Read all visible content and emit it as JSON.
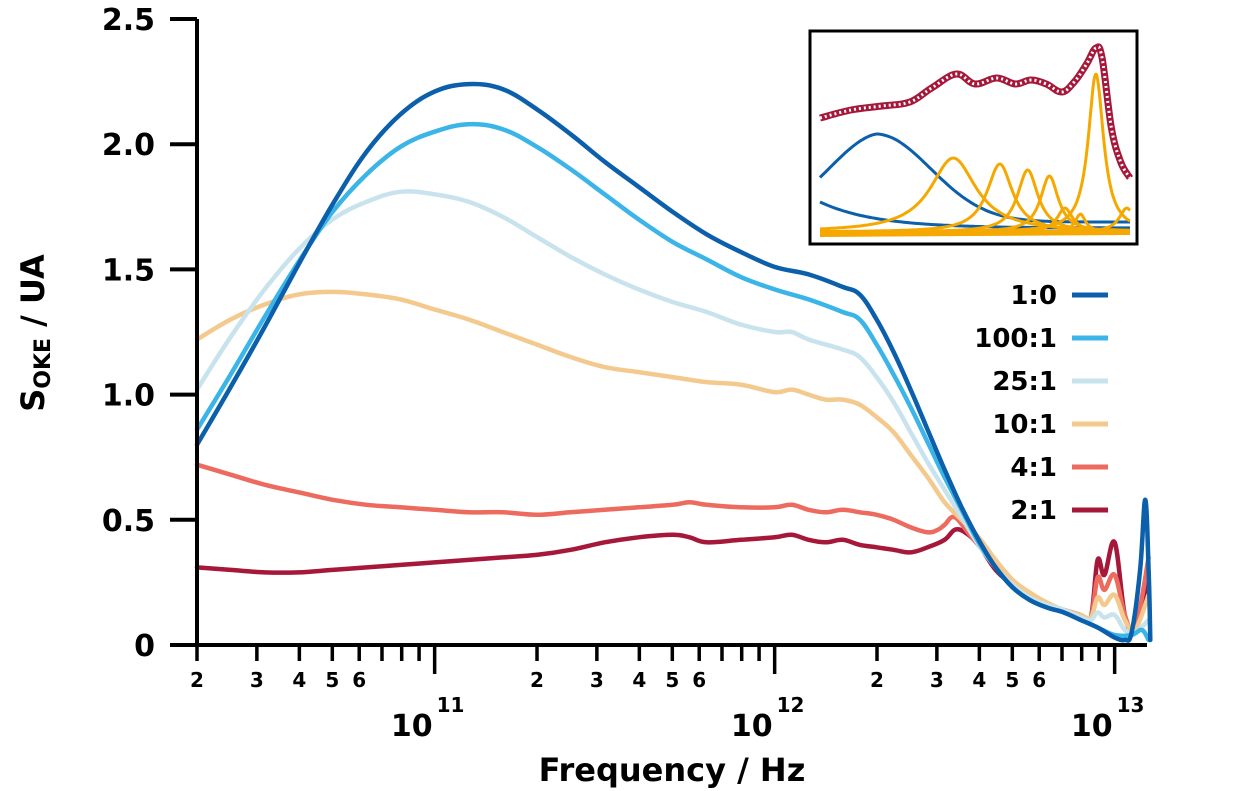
{
  "chart_data": {
    "type": "line",
    "title": "",
    "xlabel": "Frequency / Hz",
    "ylabel_main": "S",
    "ylabel_sub": "OKE",
    "ylabel_rest": " / UA",
    "xscale": "log",
    "xlim": [
      20000000000.0,
      12700000000000.0
    ],
    "ylim": [
      0,
      2.5
    ],
    "grid": false,
    "legend_position": "right-middle",
    "y_ticks": [
      {
        "value": 0,
        "label": "0"
      },
      {
        "value": 0.5,
        "label": "0.5"
      },
      {
        "value": 1.0,
        "label": "1.0"
      },
      {
        "value": 1.5,
        "label": "1.5"
      },
      {
        "value": 2.0,
        "label": "2.0"
      },
      {
        "value": 2.5,
        "label": "2.5"
      }
    ],
    "x_major_ticks": [
      {
        "value": 100000000000.0,
        "base": "10",
        "exp": "11"
      },
      {
        "value": 1000000000000.0,
        "base": "10",
        "exp": "12"
      },
      {
        "value": 10000000000000.0,
        "base": "10",
        "exp": "13"
      }
    ],
    "x_minor_labels": [
      "2",
      "3",
      "4",
      "5",
      "6"
    ],
    "series": [
      {
        "name": "1:0",
        "color": "#0b5fab",
        "points": [
          [
            10.301,
            0.8
          ],
          [
            10.4,
            1.03
          ],
          [
            10.5,
            1.27
          ],
          [
            10.6,
            1.52
          ],
          [
            10.7,
            1.76
          ],
          [
            10.8,
            1.97
          ],
          [
            10.9,
            2.12
          ],
          [
            11.0,
            2.21
          ],
          [
            11.1,
            2.24
          ],
          [
            11.2,
            2.22
          ],
          [
            11.3,
            2.14
          ],
          [
            11.4,
            2.04
          ],
          [
            11.5,
            1.93
          ],
          [
            11.6,
            1.83
          ],
          [
            11.7,
            1.73
          ],
          [
            11.8,
            1.64
          ],
          [
            11.9,
            1.57
          ],
          [
            12.0,
            1.51
          ],
          [
            12.1,
            1.48
          ],
          [
            12.2,
            1.43
          ],
          [
            12.25,
            1.4
          ],
          [
            12.3,
            1.3
          ],
          [
            12.35,
            1.17
          ],
          [
            12.4,
            1.02
          ],
          [
            12.45,
            0.86
          ],
          [
            12.5,
            0.7
          ],
          [
            12.55,
            0.55
          ],
          [
            12.6,
            0.42
          ],
          [
            12.65,
            0.31
          ],
          [
            12.7,
            0.23
          ],
          [
            12.75,
            0.18
          ],
          [
            12.8,
            0.15
          ],
          [
            12.85,
            0.13
          ],
          [
            12.9,
            0.1
          ],
          [
            12.95,
            0.07
          ],
          [
            13.0,
            0.03
          ],
          [
            13.03,
            0.02
          ],
          [
            13.05,
            0.05
          ],
          [
            13.075,
            0.3
          ],
          [
            13.09,
            0.58
          ],
          [
            13.1,
            0.3
          ],
          [
            13.105,
            0.02
          ]
        ]
      },
      {
        "name": "100:1",
        "color": "#3bb5e8",
        "points": [
          [
            10.301,
            0.86
          ],
          [
            10.4,
            1.08
          ],
          [
            10.5,
            1.31
          ],
          [
            10.6,
            1.53
          ],
          [
            10.7,
            1.73
          ],
          [
            10.8,
            1.88
          ],
          [
            10.9,
            1.99
          ],
          [
            11.0,
            2.05
          ],
          [
            11.1,
            2.08
          ],
          [
            11.2,
            2.06
          ],
          [
            11.3,
            1.99
          ],
          [
            11.4,
            1.9
          ],
          [
            11.5,
            1.8
          ],
          [
            11.6,
            1.7
          ],
          [
            11.7,
            1.61
          ],
          [
            11.8,
            1.54
          ],
          [
            11.9,
            1.47
          ],
          [
            12.0,
            1.42
          ],
          [
            12.1,
            1.38
          ],
          [
            12.2,
            1.33
          ],
          [
            12.25,
            1.3
          ],
          [
            12.3,
            1.2
          ],
          [
            12.35,
            1.08
          ],
          [
            12.4,
            0.95
          ],
          [
            12.45,
            0.81
          ],
          [
            12.5,
            0.67
          ],
          [
            12.55,
            0.54
          ],
          [
            12.6,
            0.41
          ],
          [
            12.65,
            0.31
          ],
          [
            12.7,
            0.23
          ],
          [
            12.75,
            0.18
          ],
          [
            12.8,
            0.15
          ],
          [
            12.85,
            0.13
          ],
          [
            12.9,
            0.1
          ],
          [
            12.95,
            0.07
          ],
          [
            13.0,
            0.04
          ],
          [
            13.05,
            0.04
          ],
          [
            13.08,
            0.06
          ],
          [
            13.1,
            0.02
          ]
        ]
      },
      {
        "name": "25:1",
        "color": "#c8e3ee",
        "points": [
          [
            10.301,
            1.02
          ],
          [
            10.4,
            1.23
          ],
          [
            10.5,
            1.42
          ],
          [
            10.6,
            1.58
          ],
          [
            10.7,
            1.7
          ],
          [
            10.8,
            1.77
          ],
          [
            10.9,
            1.81
          ],
          [
            11.0,
            1.8
          ],
          [
            11.1,
            1.77
          ],
          [
            11.2,
            1.71
          ],
          [
            11.3,
            1.63
          ],
          [
            11.4,
            1.55
          ],
          [
            11.5,
            1.48
          ],
          [
            11.6,
            1.42
          ],
          [
            11.7,
            1.37
          ],
          [
            11.8,
            1.33
          ],
          [
            11.9,
            1.28
          ],
          [
            12.0,
            1.25
          ],
          [
            12.05,
            1.25
          ],
          [
            12.1,
            1.22
          ],
          [
            12.2,
            1.18
          ],
          [
            12.25,
            1.15
          ],
          [
            12.3,
            1.07
          ],
          [
            12.35,
            0.97
          ],
          [
            12.4,
            0.85
          ],
          [
            12.45,
            0.73
          ],
          [
            12.5,
            0.62
          ],
          [
            12.55,
            0.51
          ],
          [
            12.6,
            0.4
          ],
          [
            12.65,
            0.31
          ],
          [
            12.7,
            0.24
          ],
          [
            12.75,
            0.19
          ],
          [
            12.8,
            0.16
          ],
          [
            12.85,
            0.14
          ],
          [
            12.9,
            0.11
          ],
          [
            12.93,
            0.1
          ],
          [
            12.95,
            0.13
          ],
          [
            12.97,
            0.11
          ],
          [
            13.0,
            0.12
          ],
          [
            13.03,
            0.06
          ],
          [
            13.06,
            0.05
          ],
          [
            13.1,
            0.1
          ]
        ]
      },
      {
        "name": "10:1",
        "color": "#f4c98e",
        "points": [
          [
            10.301,
            1.22
          ],
          [
            10.4,
            1.3
          ],
          [
            10.5,
            1.36
          ],
          [
            10.6,
            1.4
          ],
          [
            10.7,
            1.41
          ],
          [
            10.8,
            1.4
          ],
          [
            10.9,
            1.38
          ],
          [
            11.0,
            1.34
          ],
          [
            11.1,
            1.3
          ],
          [
            11.2,
            1.25
          ],
          [
            11.3,
            1.2
          ],
          [
            11.4,
            1.15
          ],
          [
            11.5,
            1.11
          ],
          [
            11.6,
            1.09
          ],
          [
            11.7,
            1.07
          ],
          [
            11.8,
            1.05
          ],
          [
            11.9,
            1.04
          ],
          [
            12.0,
            1.01
          ],
          [
            12.05,
            1.02
          ],
          [
            12.1,
            1.0
          ],
          [
            12.15,
            0.98
          ],
          [
            12.2,
            0.98
          ],
          [
            12.25,
            0.96
          ],
          [
            12.3,
            0.91
          ],
          [
            12.35,
            0.85
          ],
          [
            12.4,
            0.76
          ],
          [
            12.45,
            0.67
          ],
          [
            12.5,
            0.57
          ],
          [
            12.55,
            0.5
          ],
          [
            12.6,
            0.43
          ],
          [
            12.65,
            0.34
          ],
          [
            12.7,
            0.26
          ],
          [
            12.75,
            0.21
          ],
          [
            12.8,
            0.17
          ],
          [
            12.85,
            0.14
          ],
          [
            12.9,
            0.12
          ],
          [
            12.93,
            0.11
          ],
          [
            12.95,
            0.19
          ],
          [
            12.97,
            0.16
          ],
          [
            13.0,
            0.2
          ],
          [
            13.03,
            0.1
          ],
          [
            13.06,
            0.06
          ],
          [
            13.1,
            0.2
          ]
        ]
      },
      {
        "name": "4:1",
        "color": "#ec6a5e",
        "points": [
          [
            10.301,
            0.72
          ],
          [
            10.4,
            0.68
          ],
          [
            10.5,
            0.64
          ],
          [
            10.6,
            0.61
          ],
          [
            10.7,
            0.58
          ],
          [
            10.8,
            0.56
          ],
          [
            10.9,
            0.55
          ],
          [
            11.0,
            0.54
          ],
          [
            11.1,
            0.53
          ],
          [
            11.2,
            0.53
          ],
          [
            11.3,
            0.52
          ],
          [
            11.4,
            0.53
          ],
          [
            11.5,
            0.54
          ],
          [
            11.6,
            0.55
          ],
          [
            11.7,
            0.56
          ],
          [
            11.75,
            0.57
          ],
          [
            11.8,
            0.56
          ],
          [
            11.9,
            0.55
          ],
          [
            12.0,
            0.55
          ],
          [
            12.05,
            0.56
          ],
          [
            12.1,
            0.54
          ],
          [
            12.15,
            0.53
          ],
          [
            12.2,
            0.54
          ],
          [
            12.25,
            0.53
          ],
          [
            12.3,
            0.52
          ],
          [
            12.35,
            0.5
          ],
          [
            12.4,
            0.47
          ],
          [
            12.45,
            0.45
          ],
          [
            12.48,
            0.46
          ],
          [
            12.5,
            0.48
          ],
          [
            12.53,
            0.51
          ],
          [
            12.58,
            0.43
          ],
          [
            12.65,
            0.32
          ],
          [
            12.7,
            0.25
          ],
          [
            12.75,
            0.19
          ],
          [
            12.8,
            0.16
          ],
          [
            12.85,
            0.14
          ],
          [
            12.9,
            0.12
          ],
          [
            12.93,
            0.11
          ],
          [
            12.95,
            0.27
          ],
          [
            12.97,
            0.22
          ],
          [
            13.0,
            0.28
          ],
          [
            13.03,
            0.12
          ],
          [
            13.06,
            0.06
          ],
          [
            13.1,
            0.35
          ]
        ]
      },
      {
        "name": "2:1",
        "color": "#a5183a",
        "points": [
          [
            10.301,
            0.31
          ],
          [
            10.4,
            0.3
          ],
          [
            10.5,
            0.29
          ],
          [
            10.6,
            0.29
          ],
          [
            10.7,
            0.3
          ],
          [
            10.8,
            0.31
          ],
          [
            10.9,
            0.32
          ],
          [
            11.0,
            0.33
          ],
          [
            11.1,
            0.34
          ],
          [
            11.2,
            0.35
          ],
          [
            11.3,
            0.36
          ],
          [
            11.4,
            0.38
          ],
          [
            11.5,
            0.41
          ],
          [
            11.6,
            0.43
          ],
          [
            11.7,
            0.44
          ],
          [
            11.75,
            0.43
          ],
          [
            11.8,
            0.41
          ],
          [
            11.9,
            0.42
          ],
          [
            12.0,
            0.43
          ],
          [
            12.05,
            0.44
          ],
          [
            12.1,
            0.42
          ],
          [
            12.15,
            0.41
          ],
          [
            12.2,
            0.42
          ],
          [
            12.25,
            0.4
          ],
          [
            12.3,
            0.39
          ],
          [
            12.35,
            0.38
          ],
          [
            12.4,
            0.37
          ],
          [
            12.45,
            0.39
          ],
          [
            12.5,
            0.42
          ],
          [
            12.53,
            0.46
          ],
          [
            12.56,
            0.45
          ],
          [
            12.6,
            0.4
          ],
          [
            12.65,
            0.3
          ],
          [
            12.7,
            0.24
          ],
          [
            12.75,
            0.19
          ],
          [
            12.8,
            0.16
          ],
          [
            12.85,
            0.14
          ],
          [
            12.9,
            0.12
          ],
          [
            12.93,
            0.11
          ],
          [
            12.95,
            0.34
          ],
          [
            12.97,
            0.28
          ],
          [
            13.0,
            0.41
          ],
          [
            13.03,
            0.12
          ],
          [
            13.06,
            0.06
          ],
          [
            13.1,
            0.25
          ]
        ]
      }
    ],
    "inset": {
      "description": "Spectral decomposition of 2:1 curve into component peaks (unlabeled axes)",
      "fit_curve": {
        "color": "#a5183a",
        "style": "dotted-white-on-dark-red"
      },
      "blue_components_color": "#0b5fab",
      "orange_components_color": "#f5a800"
    }
  }
}
